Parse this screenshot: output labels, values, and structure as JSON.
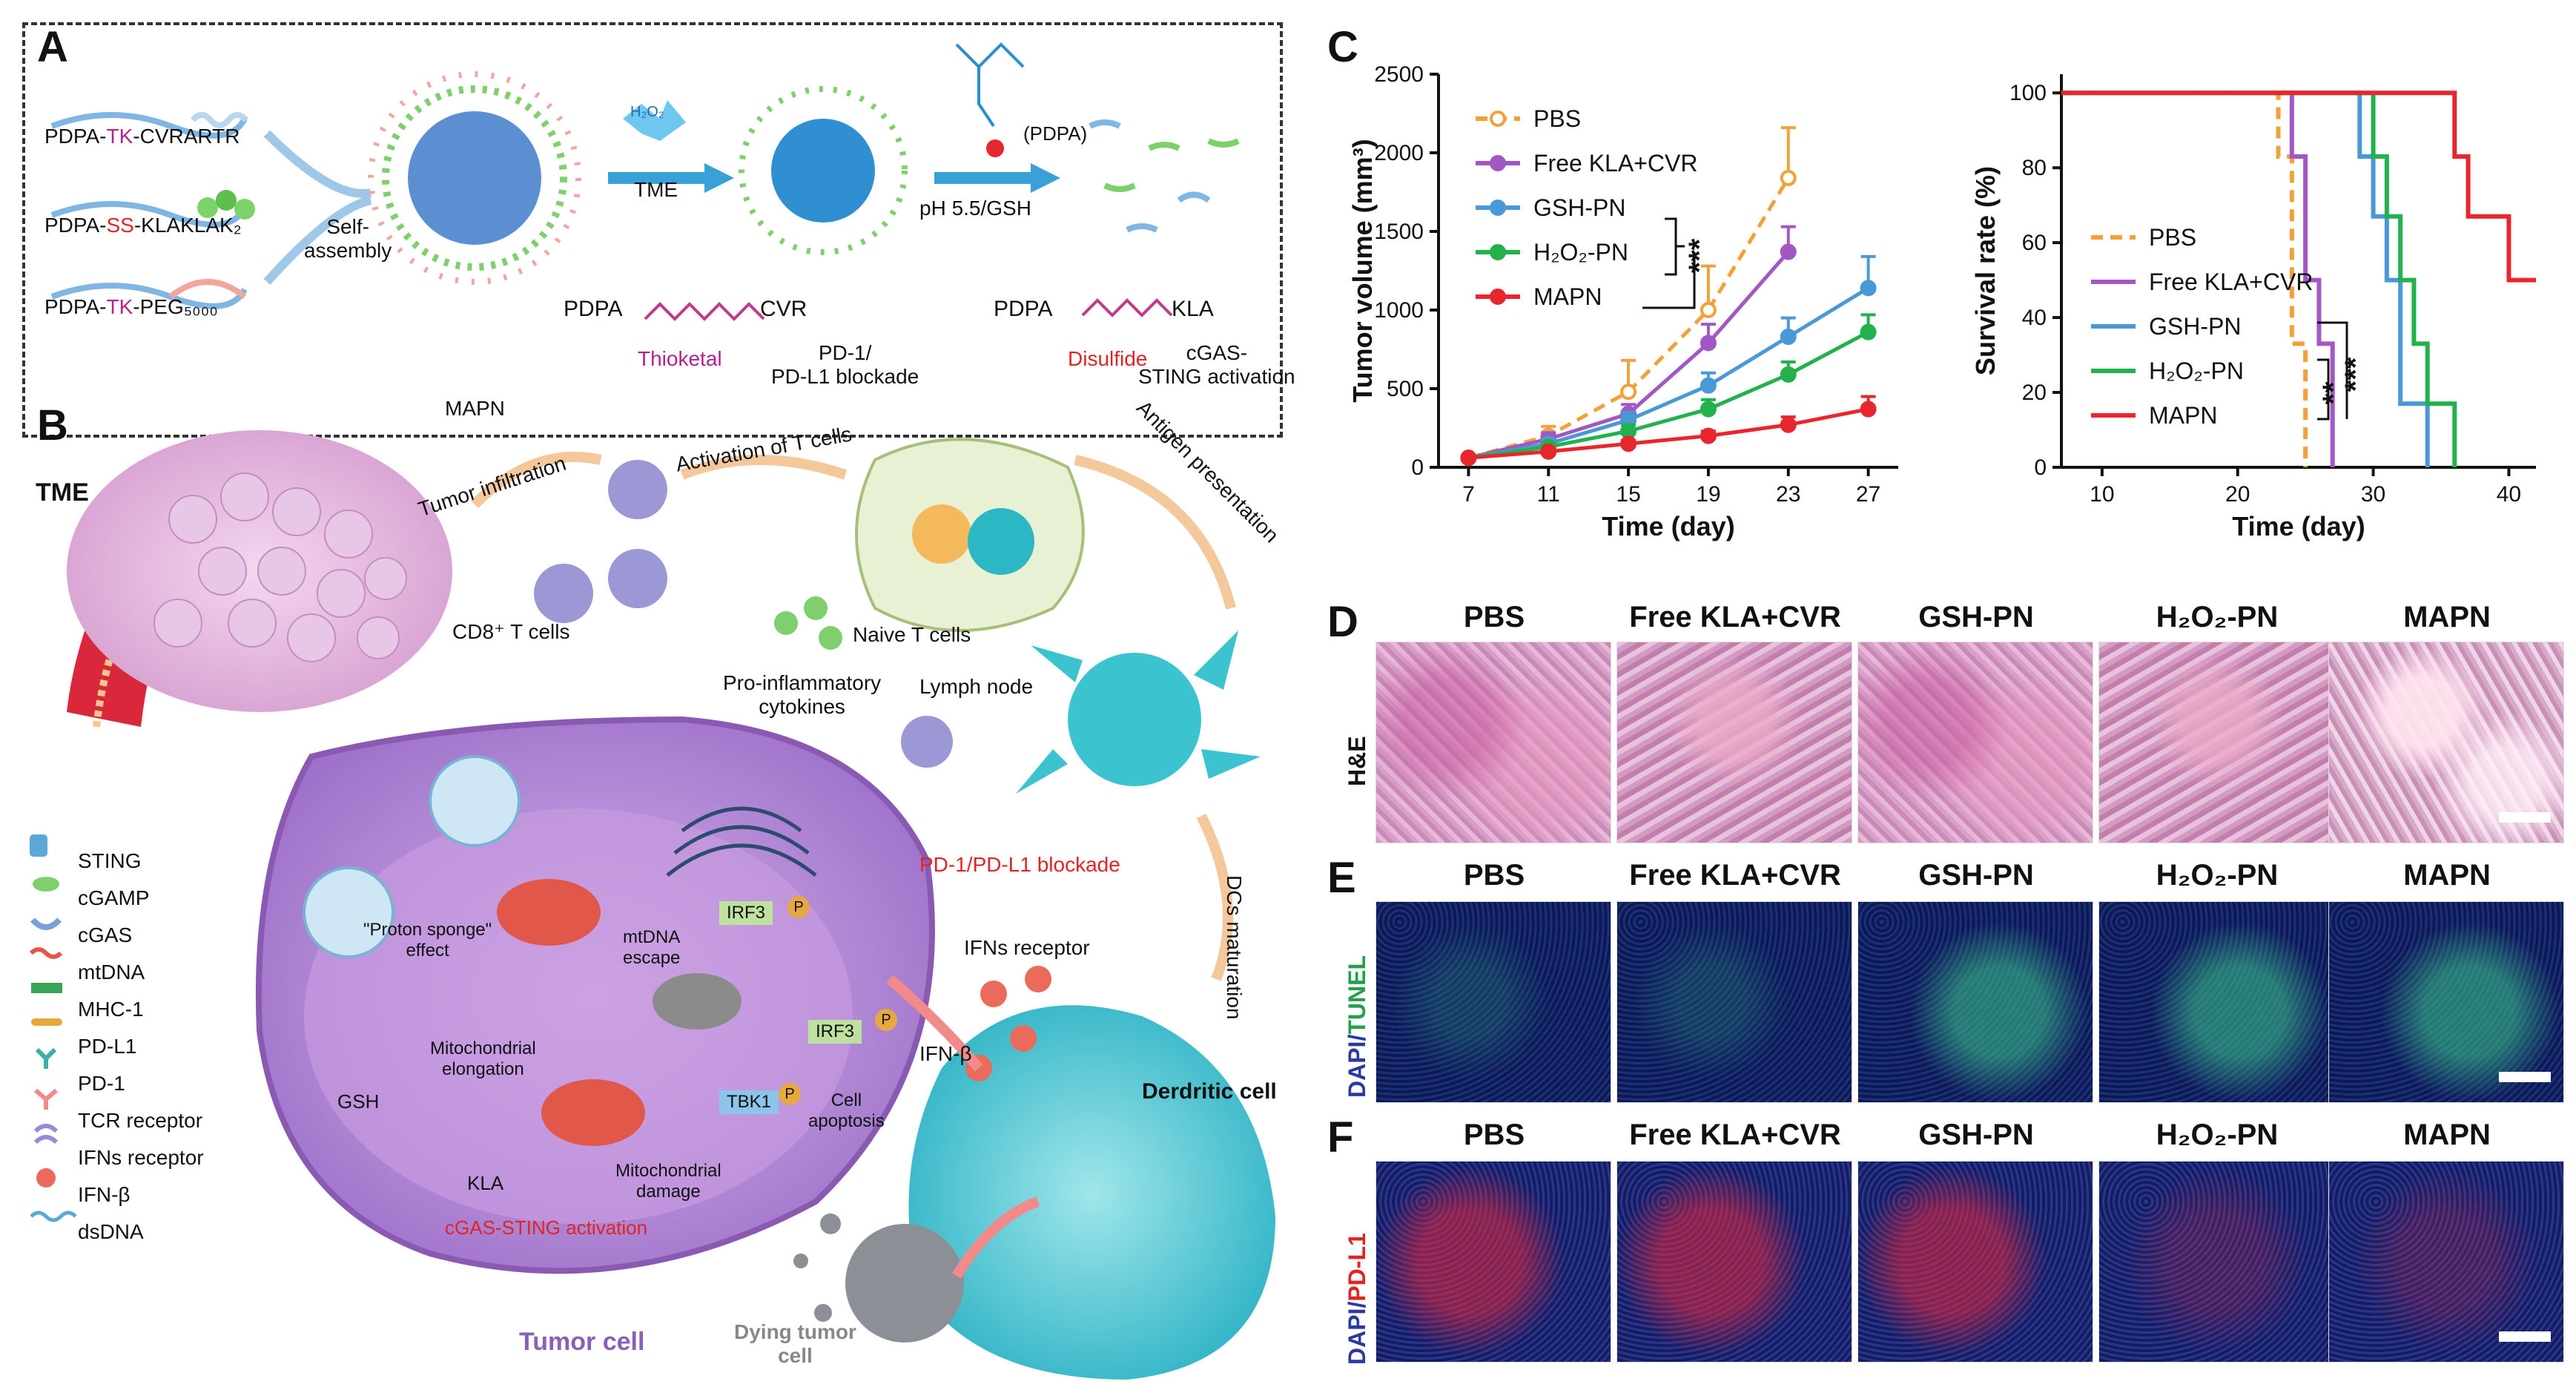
{
  "panels": {
    "A": "A",
    "B": "B",
    "C": "C",
    "D": "D",
    "E": "E",
    "F": "F"
  },
  "panelA": {
    "inputs": [
      {
        "prefix": "PDPA-",
        "mid": "TK",
        "suffix": "-CVRARTR"
      },
      {
        "prefix": "PDPA-",
        "mid": "SS",
        "suffix": "-KLAKLAK₂"
      },
      {
        "prefix": "PDPA-",
        "mid": "TK",
        "suffix": "-PEG₅₀₀₀"
      }
    ],
    "self_assembly": "Self-\nassembly",
    "mapn": "MAPN",
    "tme": "TME",
    "h2o2": "H₂O₂",
    "thioketal_left": "PDPA",
    "thioketal_right": "CVR",
    "thioketal": "Thioketal",
    "pd_block": "PD-1/\nPD-L1 blockade",
    "ph_gsh": "pH 5.5/GSH",
    "pdpa_label": "(PDPA)",
    "disulfide_left": "PDPA",
    "disulfide_right": "KLA",
    "disulfide": "Disulfide",
    "sting_act": "cGAS-\nSTING activation"
  },
  "panelB": {
    "tme": "TME",
    "tumor_infiltration": "Tumor infiltration",
    "activation_t": "Activation of T cells",
    "antigen_pres": "Antigen presentation",
    "naive_t": "Naive T cells",
    "lymph_node": "Lymph node",
    "cd8": "CD8⁺ T cells",
    "pro_inflam": "Pro-inflammatory\ncytokines",
    "pd_block": "PD-1/PD-L1 blockade",
    "dcs_mat": "DCs maturation",
    "ifns_receptor": "IFNs receptor",
    "ifn_beta": "IFN-β",
    "derdritic": "Derdritic cell",
    "dying": "Dying tumor\ncell",
    "tumor_cell": "Tumor cell",
    "proton": "\"Proton sponge\"\neffect",
    "mtdna_escape": "mtDNA\nescape",
    "irf3": "IRF3",
    "irf3b": "IRF3",
    "tbk1": "TBK1",
    "p": "P",
    "mito_elong": "Mitochondrial\nelongation",
    "cell_apop": "Cell\napoptosis",
    "gsh": "GSH",
    "kla": "KLA",
    "mito_damage": "Mitochondrial\ndamage",
    "cgas_act": "cGAS-STING activation",
    "legend": [
      "STING",
      "cGAMP",
      "cGAS",
      "mtDNA",
      "MHC-1",
      "PD-L1",
      "PD-1",
      "TCR receptor",
      "IFNs receptor",
      "IFN-β",
      "dsDNA"
    ]
  },
  "chart_data": [
    {
      "type": "line",
      "ylabel": "Tumor volume (mm³)",
      "xlabel": "Time (day)",
      "x": [
        7,
        11,
        15,
        19,
        23,
        27
      ],
      "xlim": [
        5.5,
        28.5
      ],
      "ylim": [
        0,
        2500
      ],
      "yticks": [
        0,
        500,
        1000,
        1500,
        2000,
        2500
      ],
      "xticks": [
        7,
        11,
        15,
        19,
        23,
        27
      ],
      "legend_position": "top-left",
      "significance": "***",
      "series": [
        {
          "name": "PBS",
          "color": "#f2a13a",
          "dashed": true,
          "x": [
            7,
            11,
            15,
            19,
            23
          ],
          "values": [
            60,
            200,
            480,
            1000,
            1840
          ],
          "err": [
            10,
            60,
            200,
            280,
            320
          ]
        },
        {
          "name": "Free KLA+CVR",
          "color": "#a357c4",
          "dashed": false,
          "x": [
            7,
            11,
            15,
            19,
            23
          ],
          "values": [
            60,
            180,
            340,
            790,
            1370
          ],
          "err": [
            10,
            40,
            60,
            120,
            160
          ]
        },
        {
          "name": "GSH-PN",
          "color": "#4a98d6",
          "dashed": false,
          "x": [
            7,
            11,
            15,
            19,
            23,
            27
          ],
          "values": [
            60,
            150,
            300,
            520,
            830,
            1140
          ],
          "err": [
            10,
            30,
            50,
            80,
            120,
            200
          ]
        },
        {
          "name": "H₂O₂-PN",
          "color": "#22b14c",
          "dashed": false,
          "x": [
            7,
            11,
            15,
            19,
            23,
            27
          ],
          "values": [
            60,
            130,
            230,
            370,
            590,
            860
          ],
          "err": [
            10,
            20,
            40,
            60,
            80,
            110
          ]
        },
        {
          "name": "MAPN",
          "color": "#e8262d",
          "dashed": false,
          "x": [
            7,
            11,
            15,
            19,
            23,
            27
          ],
          "values": [
            60,
            100,
            150,
            200,
            270,
            370
          ],
          "err": [
            10,
            15,
            20,
            30,
            50,
            80
          ]
        }
      ]
    },
    {
      "type": "line",
      "ylabel": "Survival rate (%)",
      "xlabel": "Time (day)",
      "xlim": [
        7,
        42
      ],
      "ylim": [
        0,
        105
      ],
      "yticks": [
        0,
        20,
        40,
        60,
        80,
        100
      ],
      "xticks": [
        10,
        20,
        30,
        40
      ],
      "legend_position": "center-left",
      "significance": [
        "**",
        "***"
      ],
      "series": [
        {
          "name": "PBS",
          "color": "#f2a13a",
          "dashed": true,
          "steps": [
            [
              7,
              100
            ],
            [
              23,
              100
            ],
            [
              23,
              83
            ],
            [
              24,
              83
            ],
            [
              24,
              33
            ],
            [
              25,
              33
            ],
            [
              25,
              0
            ]
          ]
        },
        {
          "name": "Free KLA+CVR",
          "color": "#a357c4",
          "dashed": false,
          "steps": [
            [
              7,
              100
            ],
            [
              24,
              100
            ],
            [
              24,
              83
            ],
            [
              25,
              83
            ],
            [
              25,
              50
            ],
            [
              26,
              50
            ],
            [
              26,
              33
            ],
            [
              27,
              33
            ],
            [
              27,
              0
            ]
          ]
        },
        {
          "name": "GSH-PN",
          "color": "#4a98d6",
          "dashed": false,
          "steps": [
            [
              7,
              100
            ],
            [
              29,
              100
            ],
            [
              29,
              83
            ],
            [
              30,
              83
            ],
            [
              30,
              67
            ],
            [
              31,
              67
            ],
            [
              31,
              50
            ],
            [
              32,
              50
            ],
            [
              32,
              17
            ],
            [
              34,
              17
            ],
            [
              34,
              0
            ]
          ]
        },
        {
          "name": "H₂O₂-PN",
          "color": "#22b14c",
          "dashed": false,
          "steps": [
            [
              7,
              100
            ],
            [
              30,
              100
            ],
            [
              30,
              83
            ],
            [
              31,
              83
            ],
            [
              31,
              67
            ],
            [
              32,
              67
            ],
            [
              32,
              50
            ],
            [
              33,
              50
            ],
            [
              33,
              33
            ],
            [
              34,
              33
            ],
            [
              34,
              17
            ],
            [
              36,
              17
            ],
            [
              36,
              0
            ]
          ]
        },
        {
          "name": "MAPN",
          "color": "#e8262d",
          "dashed": false,
          "steps": [
            [
              7,
              100
            ],
            [
              36,
              100
            ],
            [
              36,
              83
            ],
            [
              37,
              83
            ],
            [
              37,
              67
            ],
            [
              40,
              67
            ],
            [
              40,
              50
            ],
            [
              42,
              50
            ]
          ]
        }
      ]
    }
  ],
  "histology": {
    "columns": [
      "PBS",
      "Free KLA+CVR",
      "GSH-PN",
      "H₂O₂-PN",
      "MAPN"
    ],
    "row_D_label": "H&E",
    "row_E_label_a": "DAPI/",
    "row_E_label_b": "TUNEL",
    "row_F_label_a": "DAPI/",
    "row_F_label_b": "PD-L1"
  }
}
